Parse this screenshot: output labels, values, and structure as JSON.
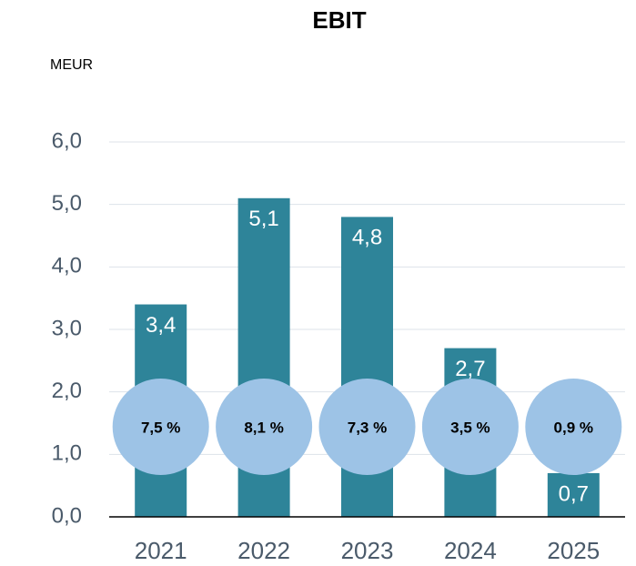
{
  "chart_data": {
    "type": "bar",
    "title": "EBIT",
    "unit": "MEUR",
    "categories": [
      "2021",
      "2022",
      "2023",
      "2024",
      "2025"
    ],
    "values": [
      3.4,
      5.1,
      4.8,
      2.7,
      0.7
    ],
    "value_labels": [
      "3,4",
      "5,1",
      "4,8",
      "2,7",
      "0,7"
    ],
    "color": "#2e8499",
    "margins": {
      "values": [
        7.5,
        8.1,
        7.3,
        3.5,
        0.9
      ],
      "value_labels": [
        "7,5 %",
        "8,1 %",
        "7,3 %",
        "3,5 %",
        "0,9 %"
      ],
      "color": "#9dc3e6"
    },
    "ylim": [
      0,
      6
    ],
    "yticks": [
      {
        "value": 0,
        "label": "0,0"
      },
      {
        "value": 1,
        "label": "1,0"
      },
      {
        "value": 2,
        "label": "2,0"
      },
      {
        "value": 3,
        "label": "3,0"
      },
      {
        "value": 4,
        "label": "4,0"
      },
      {
        "value": 5,
        "label": "5,0"
      },
      {
        "value": 6,
        "label": "6,0"
      }
    ],
    "grid": true
  }
}
